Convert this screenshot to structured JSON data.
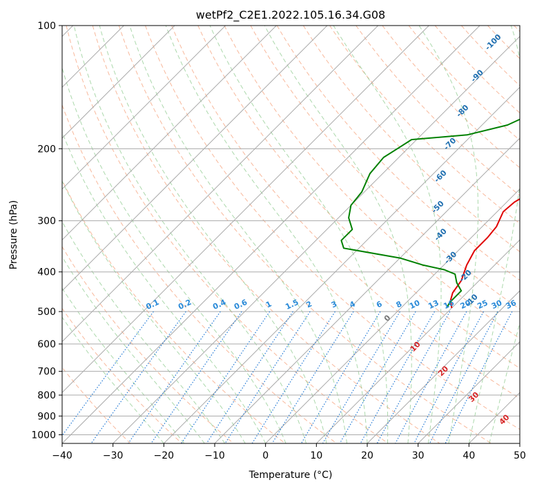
{
  "chart_data": {
    "type": "line",
    "title": "wetPf2_C2E1.2022.105.16.34.G08",
    "xlabel": "Temperature (°C)",
    "ylabel": "Pressure (hPa)",
    "xlim": [
      -40,
      50
    ],
    "ylim": [
      1050,
      100
    ],
    "y_scale": "log",
    "x_ticks": [
      -40,
      -30,
      -20,
      -10,
      0,
      10,
      20,
      30,
      40,
      50
    ],
    "y_ticks": [
      100,
      200,
      300,
      400,
      500,
      600,
      700,
      800,
      900,
      1000
    ],
    "grid": true,
    "colors": {
      "temperature": "#e00000",
      "dewpoint": "#008000",
      "isotherm": "#aaaaaa",
      "dry_adiabat": "#f5a07a",
      "moist_adiabat": "#88c888",
      "mixing_ratio": "#1f77d4",
      "height_label": "#1f6fb0",
      "lcl_label": "#d62728"
    },
    "series": [
      {
        "key": "temperature",
        "points": [
          [
            10.8,
            100
          ],
          [
            10.3,
            107
          ],
          [
            10.4,
            115
          ],
          [
            11.0,
            125
          ],
          [
            10.8,
            135
          ],
          [
            10.0,
            150
          ],
          [
            9.6,
            165
          ],
          [
            9.3,
            180
          ],
          [
            8.2,
            195
          ],
          [
            6.5,
            215
          ],
          [
            4.5,
            240
          ],
          [
            1.5,
            270
          ],
          [
            1.2,
            285
          ],
          [
            2.8,
            310
          ],
          [
            3.2,
            330
          ],
          [
            3.2,
            355
          ],
          [
            4.5,
            385
          ],
          [
            6.5,
            420
          ],
          [
            7.2,
            450
          ],
          [
            8.3,
            470
          ],
          [
            10.0,
            490
          ]
        ]
      },
      {
        "key": "dewpoint",
        "points": [
          [
            -0.5,
            100
          ],
          [
            -3,
            115
          ],
          [
            -6,
            135
          ],
          [
            -10,
            155
          ],
          [
            -15,
            175
          ],
          [
            -21,
            185
          ],
          [
            -31,
            190
          ],
          [
            -32,
            200
          ],
          [
            -33,
            210
          ],
          [
            -32.5,
            230
          ],
          [
            -30.5,
            255
          ],
          [
            -30,
            275
          ],
          [
            -28,
            295
          ],
          [
            -25,
            315
          ],
          [
            -25,
            335
          ],
          [
            -23,
            350
          ],
          [
            -10,
            370
          ],
          [
            -4,
            385
          ],
          [
            1,
            395
          ],
          [
            4,
            405
          ],
          [
            6,
            425
          ],
          [
            8.5,
            445
          ],
          [
            8.5,
            475
          ],
          [
            9,
            490
          ]
        ]
      }
    ],
    "height_labels": [
      {
        "text": "-100",
        "x": -34,
        "y": 110
      },
      {
        "text": "-90",
        "x": -30.5,
        "y": 133
      },
      {
        "text": "-80",
        "x": -26.5,
        "y": 162
      },
      {
        "text": "-70",
        "x": -22.5,
        "y": 195
      },
      {
        "text": "-60",
        "x": -18,
        "y": 234
      },
      {
        "text": "-50",
        "x": -12.5,
        "y": 278
      },
      {
        "text": "-40",
        "x": -6.5,
        "y": 325
      },
      {
        "text": "-30",
        "x": 0,
        "y": 370
      },
      {
        "text": "-20",
        "x": 6.5,
        "y": 410
      },
      {
        "text": "-10",
        "x": 12.5,
        "y": 470
      }
    ],
    "mixing_ratio_labels": [
      "0.1",
      "0.2",
      "0.4",
      "0.6",
      "1",
      "1.5",
      "2",
      "3",
      "4",
      "6",
      "8",
      "10",
      "13",
      "16",
      "20",
      "25",
      "30",
      "36"
    ],
    "lcl_labels": [
      {
        "text": "0",
        "x": 24,
        "y": 520
      },
      {
        "text": "10",
        "x": 29.5,
        "y": 610
      },
      {
        "text": "20",
        "x": 35,
        "y": 700
      },
      {
        "text": "30",
        "x": 41,
        "y": 810
      },
      {
        "text": "40",
        "x": 47,
        "y": 920
      }
    ]
  }
}
